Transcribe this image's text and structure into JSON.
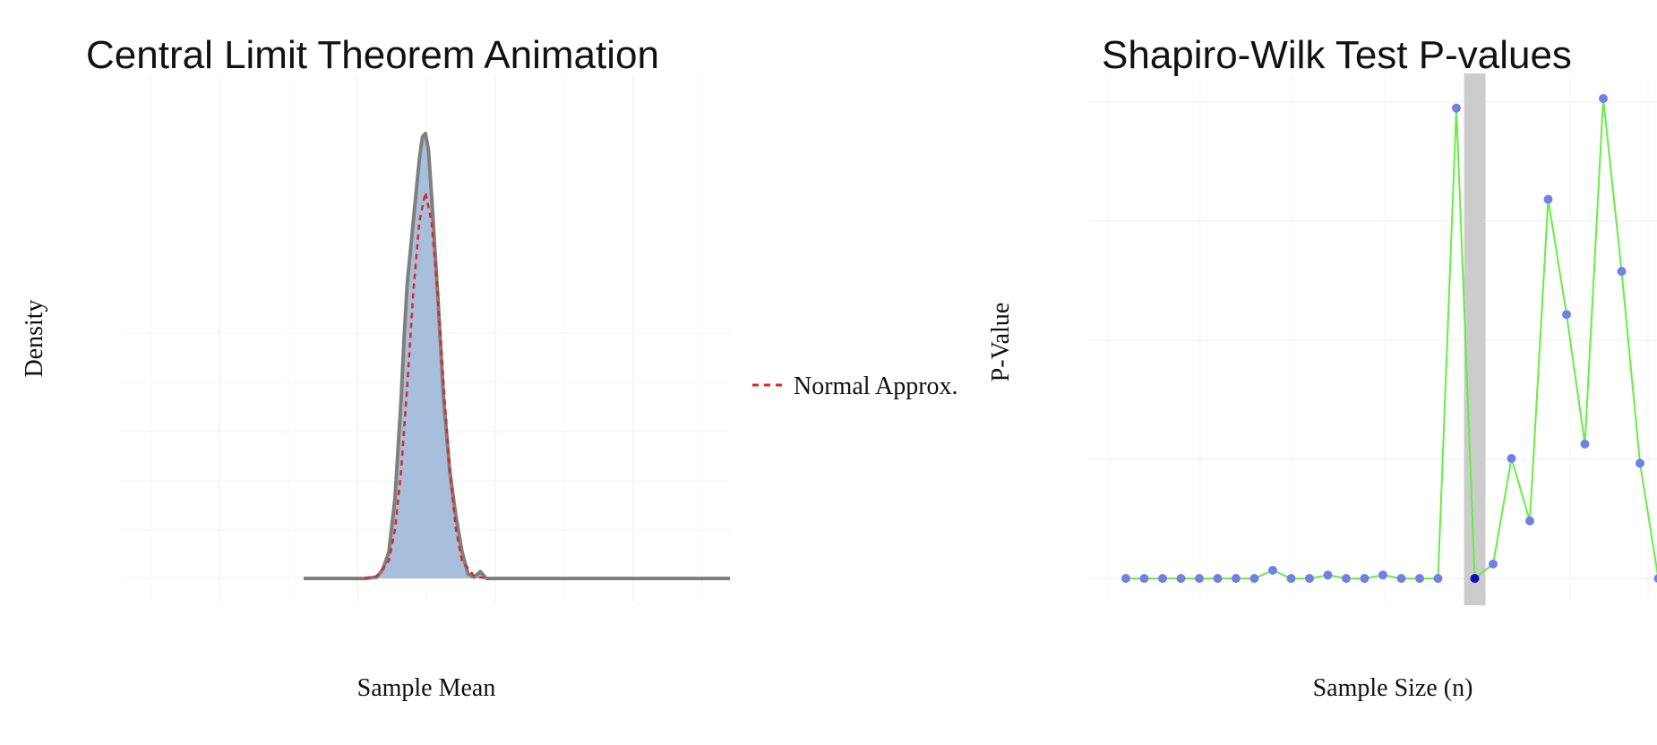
{
  "chart_data": [
    {
      "type": "area",
      "title": "Central Limit Theorem Animation",
      "xlabel": "Sample Mean",
      "ylabel": "Density",
      "xlim": [
        0,
        1
      ],
      "ylim": [
        0,
        1
      ],
      "grid": true,
      "legend_position": "right",
      "series": [
        {
          "name": "",
          "kind": "density-area",
          "color": "#7f7f7f",
          "fill": "#a7bfdc",
          "x": [
            0.3,
            0.35,
            0.4,
            0.42,
            0.43,
            0.44,
            0.45,
            0.46,
            0.465,
            0.47,
            0.48,
            0.49,
            0.495,
            0.5,
            0.505,
            0.51,
            0.52,
            0.53,
            0.54,
            0.55,
            0.56,
            0.57,
            0.58,
            0.59,
            0.6,
            0.62,
            0.65,
            0.7,
            0.8,
            0.9,
            1.0
          ],
          "y": [
            0.0,
            0.0,
            0.0,
            0.003,
            0.02,
            0.06,
            0.18,
            0.4,
            0.54,
            0.66,
            0.8,
            0.94,
            0.99,
            0.998,
            0.96,
            0.86,
            0.64,
            0.4,
            0.24,
            0.14,
            0.06,
            0.01,
            0.003,
            0.015,
            0.0,
            0.0,
            0.0,
            0.0,
            0.0,
            0.0,
            0.0
          ]
        },
        {
          "name": "Normal Approx.",
          "kind": "dashed-line",
          "color": "#e0271f",
          "x": [
            0.4,
            0.42,
            0.44,
            0.45,
            0.46,
            0.47,
            0.48,
            0.49,
            0.5,
            0.51,
            0.52,
            0.53,
            0.54,
            0.55,
            0.56,
            0.58,
            0.6
          ],
          "y": [
            0.0,
            0.005,
            0.04,
            0.11,
            0.24,
            0.43,
            0.64,
            0.8,
            0.866,
            0.8,
            0.64,
            0.43,
            0.24,
            0.11,
            0.04,
            0.005,
            0.0
          ]
        }
      ],
      "legend": [
        {
          "label": "Normal Approx.",
          "color": "#e0271f",
          "style": "dashed"
        }
      ]
    },
    {
      "type": "line",
      "title": "Shapiro-Wilk Test P-values",
      "xlabel": "Sample Size (n)",
      "ylabel": "P-Value",
      "ylim": [
        0,
        1
      ],
      "grid": true,
      "series": [
        {
          "name": "",
          "line_color": "#66ee44",
          "point_color": "#7080e8",
          "x": [
            1,
            2,
            3,
            4,
            5,
            6,
            7,
            8,
            9,
            10,
            11,
            12,
            13,
            14,
            15,
            16,
            17,
            18,
            19,
            20,
            21,
            22,
            23,
            24,
            25,
            26,
            27,
            28,
            29,
            30,
            31
          ],
          "y": [
            0.0,
            0.0,
            0.0,
            0.0,
            0.0,
            0.0,
            0.0,
            0.0,
            0.017,
            0.0,
            0.0,
            0.007,
            0.0,
            0.0,
            0.007,
            0.0,
            0.0,
            0.0,
            0.98,
            0.0,
            0.03,
            0.25,
            0.12,
            0.79,
            0.55,
            0.28,
            1.0,
            0.64,
            0.24,
            0.0,
            0.0
          ]
        }
      ],
      "highlight": {
        "x": 20,
        "y": 0.0,
        "point_color": "#1010bb",
        "band_color": "#cccccc"
      }
    }
  ]
}
